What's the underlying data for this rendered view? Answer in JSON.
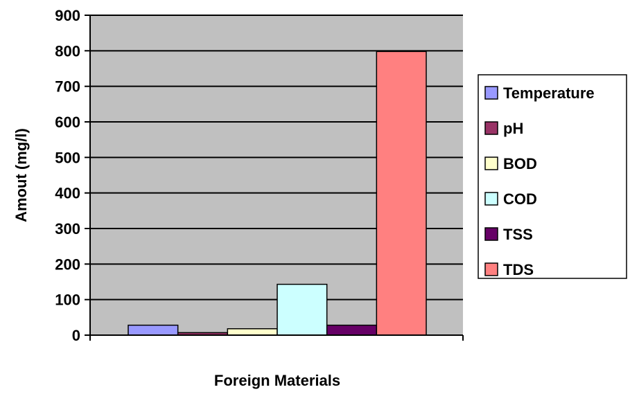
{
  "chart_data": {
    "type": "bar",
    "title": "",
    "xlabel": "Foreign Materials",
    "ylabel": "Amout (mg/l)",
    "ylim": [
      0,
      900
    ],
    "yticks": [
      0,
      100,
      200,
      300,
      400,
      500,
      600,
      700,
      800,
      900
    ],
    "grid": "horizontal",
    "legend_position": "right",
    "series": [
      {
        "name": "Temperature",
        "value": 28,
        "color": "#9999ff"
      },
      {
        "name": "pH",
        "value": 7,
        "color": "#993366"
      },
      {
        "name": "BOD",
        "value": 18,
        "color": "#ffffcc"
      },
      {
        "name": "COD",
        "value": 143,
        "color": "#ccffff"
      },
      {
        "name": "TSS",
        "value": 28,
        "color": "#660066"
      },
      {
        "name": "TDS",
        "value": 798,
        "color": "#ff8080"
      }
    ],
    "plot_background": "#c0c0c0"
  }
}
